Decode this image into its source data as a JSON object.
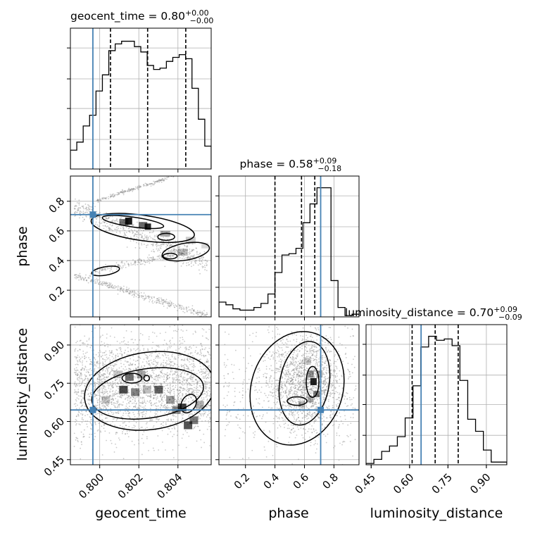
{
  "chart_data": {
    "type": "corner",
    "parameters": [
      "geocent_time",
      "phase",
      "luminosity_distance"
    ],
    "titles": [
      {
        "param": "geocent_time",
        "median": "0.80",
        "plus": "+0.00",
        "minus": "−0.00"
      },
      {
        "param": "phase",
        "median": "0.58",
        "plus": "+0.09",
        "minus": "−0.18"
      },
      {
        "param": "luminosity_distance",
        "median": "0.70",
        "plus": "+0.09",
        "minus": "−0.09"
      }
    ],
    "xlabels": [
      "geocent_time",
      "phase",
      "luminosity_distance"
    ],
    "ylabels": [
      "",
      "phase",
      "luminosity_distance"
    ],
    "ranges": {
      "geocent_time": [
        0.7985,
        0.8057
      ],
      "phase": [
        0.02,
        0.97
      ],
      "luminosity_distance": [
        0.43,
        0.98
      ]
    },
    "ticks": {
      "geocent_time": [
        0.8,
        0.802,
        0.804
      ],
      "geocent_time_labels": [
        "0.800",
        "0.802",
        "0.804"
      ],
      "phase_x": [
        0.2,
        0.4,
        0.6,
        0.8
      ],
      "phase_x_labels": [
        "0.2",
        "0.4",
        "0.6",
        "0.8"
      ],
      "phase_y": [
        0.2,
        0.4,
        0.6,
        0.8
      ],
      "phase_y_labels": [
        "0.2",
        "0.4",
        "0.6",
        "0.8"
      ],
      "luminosity_distance": [
        0.45,
        0.6,
        0.75,
        0.9
      ],
      "luminosity_distance_labels": [
        "0.45",
        "0.60",
        "0.75",
        "0.90"
      ]
    },
    "truths": {
      "geocent_time": 0.79965,
      "phase": 0.71,
      "luminosity_distance": 0.645
    },
    "quantiles": {
      "geocent_time": [
        0.80055,
        0.80245,
        0.8044
      ],
      "phase": [
        0.4,
        0.58,
        0.67
      ],
      "luminosity_distance": [
        0.61,
        0.7,
        0.79
      ]
    },
    "histograms": {
      "geocent_time": [
        0.14,
        0.2,
        0.32,
        0.4,
        0.58,
        0.7,
        0.88,
        0.93,
        0.95,
        0.95,
        0.91,
        0.87,
        0.77,
        0.74,
        0.75,
        0.8,
        0.83,
        0.85,
        0.82,
        0.6,
        0.37,
        0.17
      ],
      "phase": [
        0.11,
        0.09,
        0.06,
        0.05,
        0.05,
        0.07,
        0.1,
        0.17,
        0.33,
        0.46,
        0.47,
        0.51,
        0.7,
        0.84,
        0.96,
        0.96,
        0.27,
        0.07,
        0.01,
        0.02
      ],
      "luminosity_distance": [
        0.01,
        0.04,
        0.1,
        0.14,
        0.21,
        0.35,
        0.59,
        0.88,
        0.96,
        0.93,
        0.94,
        0.89,
        0.63,
        0.34,
        0.25,
        0.11,
        0.02,
        0.02
      ]
    },
    "grid": true,
    "colors": {
      "truth": "#4682b4",
      "line": "#000000",
      "density": "#000000",
      "scatter": "#8a8a8a"
    }
  }
}
